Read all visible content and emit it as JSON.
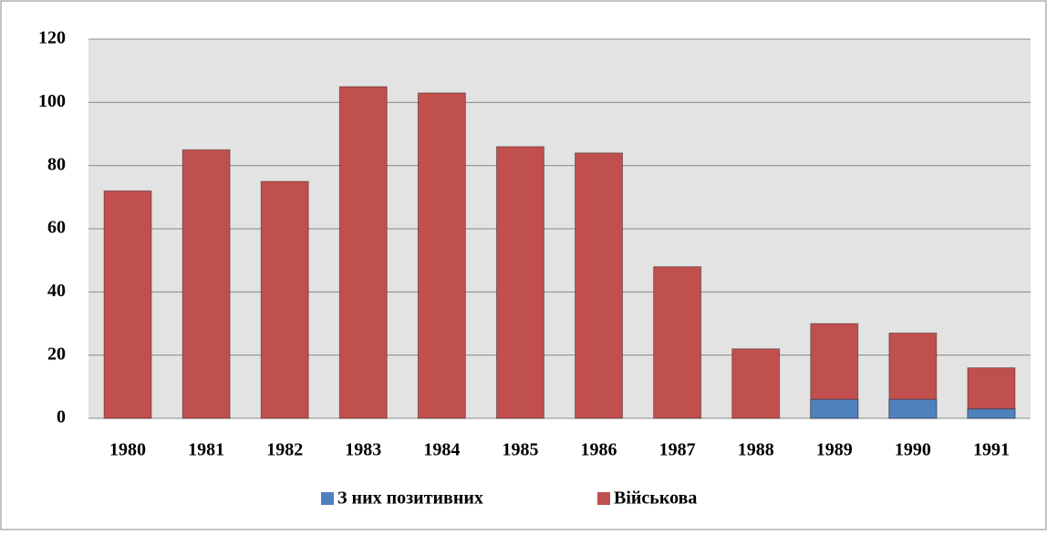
{
  "chart_data": {
    "type": "bar",
    "categories": [
      "1980",
      "1981",
      "1982",
      "1983",
      "1984",
      "1985",
      "1986",
      "1987",
      "1988",
      "1989",
      "1990",
      "1991"
    ],
    "series": [
      {
        "name": "Військова",
        "color": "#c0504d",
        "values": [
          72,
          85,
          75,
          105,
          103,
          86,
          84,
          48,
          22,
          30,
          27,
          16
        ]
      },
      {
        "name": "З них позитивних",
        "color": "#4f81bd",
        "values": [
          0,
          0,
          0,
          0,
          0,
          0,
          0,
          0,
          0,
          6,
          6,
          3
        ]
      }
    ],
    "legend_order": [
      "З них позитивних",
      "Військова"
    ],
    "ylim": [
      0,
      120
    ],
    "yticks": [
      0,
      20,
      40,
      60,
      80,
      100,
      120
    ],
    "grid": true,
    "legend": "bottom"
  }
}
